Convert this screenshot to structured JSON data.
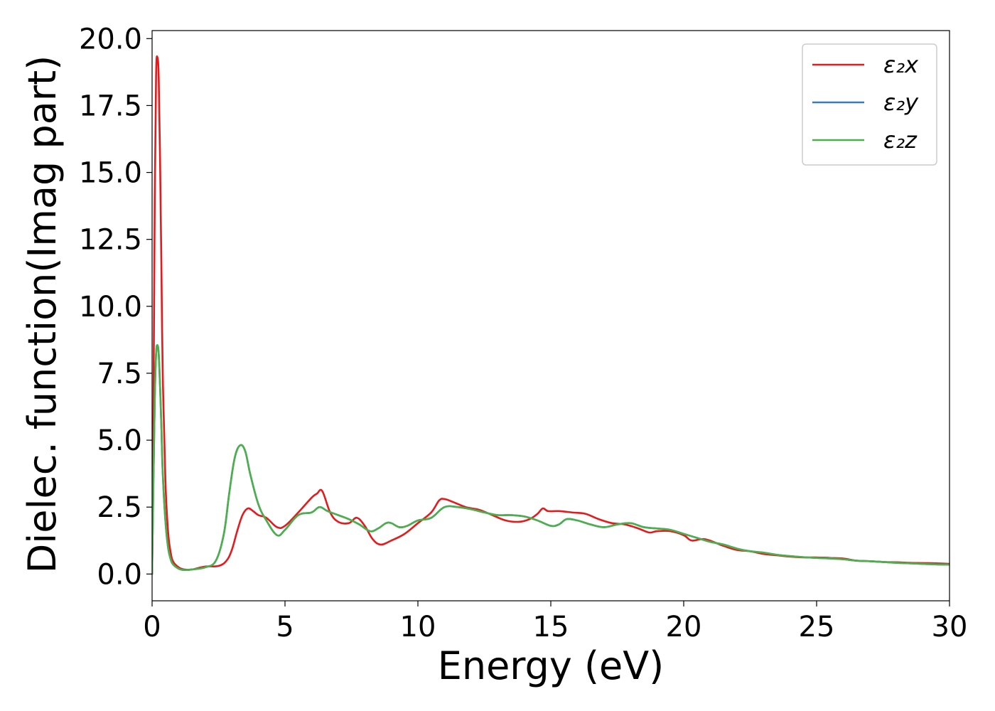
{
  "chart_data": {
    "type": "line",
    "xlabel": "Energy (eV)",
    "ylabel": "Dielec. function(Imag part)",
    "xlim": [
      0,
      30
    ],
    "ylim": [
      -1.0,
      20.3
    ],
    "xticks": [
      0,
      5,
      10,
      15,
      20,
      25,
      30
    ],
    "xtick_labels": [
      "0",
      "5",
      "10",
      "15",
      "20",
      "25",
      "30"
    ],
    "yticks": [
      0,
      2.5,
      5,
      7.5,
      10,
      12.5,
      15,
      17.5,
      20
    ],
    "ytick_labels": [
      "0.0",
      "2.5",
      "5.0",
      "7.5",
      "10.0",
      "12.5",
      "15.0",
      "17.5",
      "20.0"
    ],
    "grid": false,
    "legend_position": "top-right",
    "series": [
      {
        "name": "ε₂x",
        "color": "#e41a1c",
        "x": [
          0,
          0.05,
          0.1,
          0.15,
          0.2,
          0.25,
          0.3,
          0.35,
          0.4,
          0.5,
          0.6,
          0.7,
          0.8,
          1.0,
          1.2,
          1.5,
          2.0,
          2.5,
          2.8,
          3.0,
          3.2,
          3.4,
          3.6,
          3.8,
          4.0,
          4.3,
          4.7,
          5.0,
          5.5,
          6.0,
          6.2,
          6.4,
          6.7,
          7.0,
          7.4,
          7.7,
          8.0,
          8.3,
          8.6,
          9.0,
          9.5,
          10.0,
          10.5,
          10.8,
          11.0,
          11.3,
          11.8,
          12.3,
          12.8,
          13.3,
          13.8,
          14.2,
          14.5,
          14.7,
          14.9,
          15.3,
          15.8,
          16.3,
          16.8,
          17.3,
          17.8,
          18.3,
          18.7,
          19.0,
          19.5,
          20.0,
          20.3,
          20.8,
          21.5,
          22.0,
          22.5,
          23.0,
          23.5,
          24.0,
          24.5,
          25.0,
          25.5,
          26.0,
          26.5,
          27.0,
          27.5,
          28.0,
          28.5,
          29.0,
          29.5,
          30.0
        ],
        "values": [
          0.0,
          6.0,
          14.0,
          18.6,
          19.3,
          18.5,
          15.5,
          11.5,
          7.5,
          3.5,
          1.6,
          0.8,
          0.45,
          0.25,
          0.17,
          0.17,
          0.28,
          0.3,
          0.5,
          0.9,
          1.6,
          2.2,
          2.45,
          2.35,
          2.2,
          2.1,
          1.75,
          1.8,
          2.3,
          2.85,
          3.0,
          3.1,
          2.3,
          1.95,
          1.9,
          2.1,
          1.8,
          1.3,
          1.1,
          1.25,
          1.5,
          1.9,
          2.3,
          2.75,
          2.8,
          2.7,
          2.5,
          2.4,
          2.2,
          2.0,
          1.95,
          2.05,
          2.25,
          2.45,
          2.35,
          2.35,
          2.3,
          2.25,
          2.05,
          1.9,
          1.85,
          1.7,
          1.55,
          1.6,
          1.6,
          1.45,
          1.25,
          1.3,
          1.05,
          0.9,
          0.85,
          0.75,
          0.7,
          0.65,
          0.62,
          0.62,
          0.6,
          0.58,
          0.5,
          0.48,
          0.45,
          0.44,
          0.42,
          0.41,
          0.4,
          0.38
        ]
      },
      {
        "name": "ε₂y",
        "color": "#377eb8",
        "x": [
          0,
          0.05,
          0.1,
          0.15,
          0.2,
          0.25,
          0.3,
          0.35,
          0.4,
          0.5,
          0.6,
          0.7,
          0.8,
          1.0,
          1.2,
          1.5,
          2.0,
          2.4,
          2.7,
          2.9,
          3.1,
          3.3,
          3.5,
          3.7,
          4.0,
          4.3,
          4.7,
          5.0,
          5.5,
          6.0,
          6.3,
          6.6,
          7.0,
          7.4,
          7.8,
          8.2,
          8.5,
          8.8,
          9.0,
          9.3,
          9.6,
          10.0,
          10.5,
          11.0,
          11.5,
          12.0,
          12.5,
          13.0,
          13.5,
          14.0,
          14.5,
          15.0,
          15.3,
          15.6,
          16.0,
          16.5,
          17.0,
          17.5,
          18.0,
          18.5,
          19.0,
          19.5,
          20.0,
          20.5,
          21.0,
          21.5,
          22.0,
          22.5,
          23.0,
          23.5,
          24.0,
          24.5,
          25.0,
          25.5,
          26.0,
          26.5,
          27.0,
          27.5,
          28.0,
          28.5,
          29.0,
          29.5,
          30.0
        ],
        "values": [
          0.0,
          3.5,
          6.5,
          8.2,
          8.55,
          8.2,
          7.0,
          5.5,
          3.8,
          2.0,
          1.0,
          0.55,
          0.35,
          0.2,
          0.15,
          0.17,
          0.25,
          0.5,
          1.5,
          3.0,
          4.3,
          4.8,
          4.6,
          3.7,
          2.6,
          2.0,
          1.45,
          1.65,
          2.2,
          2.3,
          2.5,
          2.35,
          2.2,
          2.05,
          1.85,
          1.6,
          1.7,
          1.9,
          1.9,
          1.75,
          1.8,
          2.0,
          2.1,
          2.5,
          2.5,
          2.42,
          2.3,
          2.2,
          2.2,
          2.15,
          2.0,
          1.8,
          1.85,
          2.05,
          2.0,
          1.85,
          1.75,
          1.85,
          1.9,
          1.75,
          1.7,
          1.65,
          1.5,
          1.35,
          1.2,
          1.1,
          0.95,
          0.85,
          0.8,
          0.72,
          0.67,
          0.63,
          0.6,
          0.58,
          0.55,
          0.5,
          0.48,
          0.45,
          0.42,
          0.4,
          0.38,
          0.36,
          0.35
        ]
      },
      {
        "name": "ε₂z",
        "color": "#4daf4a",
        "x": [
          0,
          0.05,
          0.1,
          0.15,
          0.2,
          0.25,
          0.3,
          0.35,
          0.4,
          0.5,
          0.6,
          0.7,
          0.8,
          1.0,
          1.2,
          1.5,
          2.0,
          2.4,
          2.7,
          2.9,
          3.1,
          3.3,
          3.5,
          3.7,
          4.0,
          4.3,
          4.7,
          5.0,
          5.5,
          6.0,
          6.3,
          6.6,
          7.0,
          7.4,
          7.8,
          8.2,
          8.5,
          8.8,
          9.0,
          9.3,
          9.6,
          10.0,
          10.5,
          11.0,
          11.5,
          12.0,
          12.5,
          13.0,
          13.5,
          14.0,
          14.5,
          15.0,
          15.3,
          15.6,
          16.0,
          16.5,
          17.0,
          17.5,
          18.0,
          18.5,
          19.0,
          19.5,
          20.0,
          20.5,
          21.0,
          21.5,
          22.0,
          22.5,
          23.0,
          23.5,
          24.0,
          24.5,
          25.0,
          25.5,
          26.0,
          26.5,
          27.0,
          27.5,
          28.0,
          28.5,
          29.0,
          29.5,
          30.0
        ],
        "values": [
          0.0,
          3.5,
          6.5,
          8.2,
          8.55,
          8.2,
          7.0,
          5.5,
          3.8,
          2.0,
          1.0,
          0.55,
          0.35,
          0.2,
          0.15,
          0.17,
          0.25,
          0.5,
          1.5,
          3.0,
          4.3,
          4.8,
          4.6,
          3.7,
          2.6,
          2.0,
          1.45,
          1.65,
          2.2,
          2.3,
          2.5,
          2.35,
          2.2,
          2.05,
          1.85,
          1.6,
          1.7,
          1.9,
          1.9,
          1.75,
          1.8,
          2.0,
          2.1,
          2.5,
          2.5,
          2.42,
          2.3,
          2.2,
          2.2,
          2.15,
          2.0,
          1.8,
          1.85,
          2.05,
          2.0,
          1.85,
          1.75,
          1.85,
          1.9,
          1.75,
          1.7,
          1.65,
          1.5,
          1.35,
          1.2,
          1.1,
          0.95,
          0.85,
          0.8,
          0.72,
          0.67,
          0.63,
          0.6,
          0.58,
          0.55,
          0.5,
          0.48,
          0.45,
          0.42,
          0.4,
          0.38,
          0.36,
          0.35
        ]
      }
    ]
  }
}
